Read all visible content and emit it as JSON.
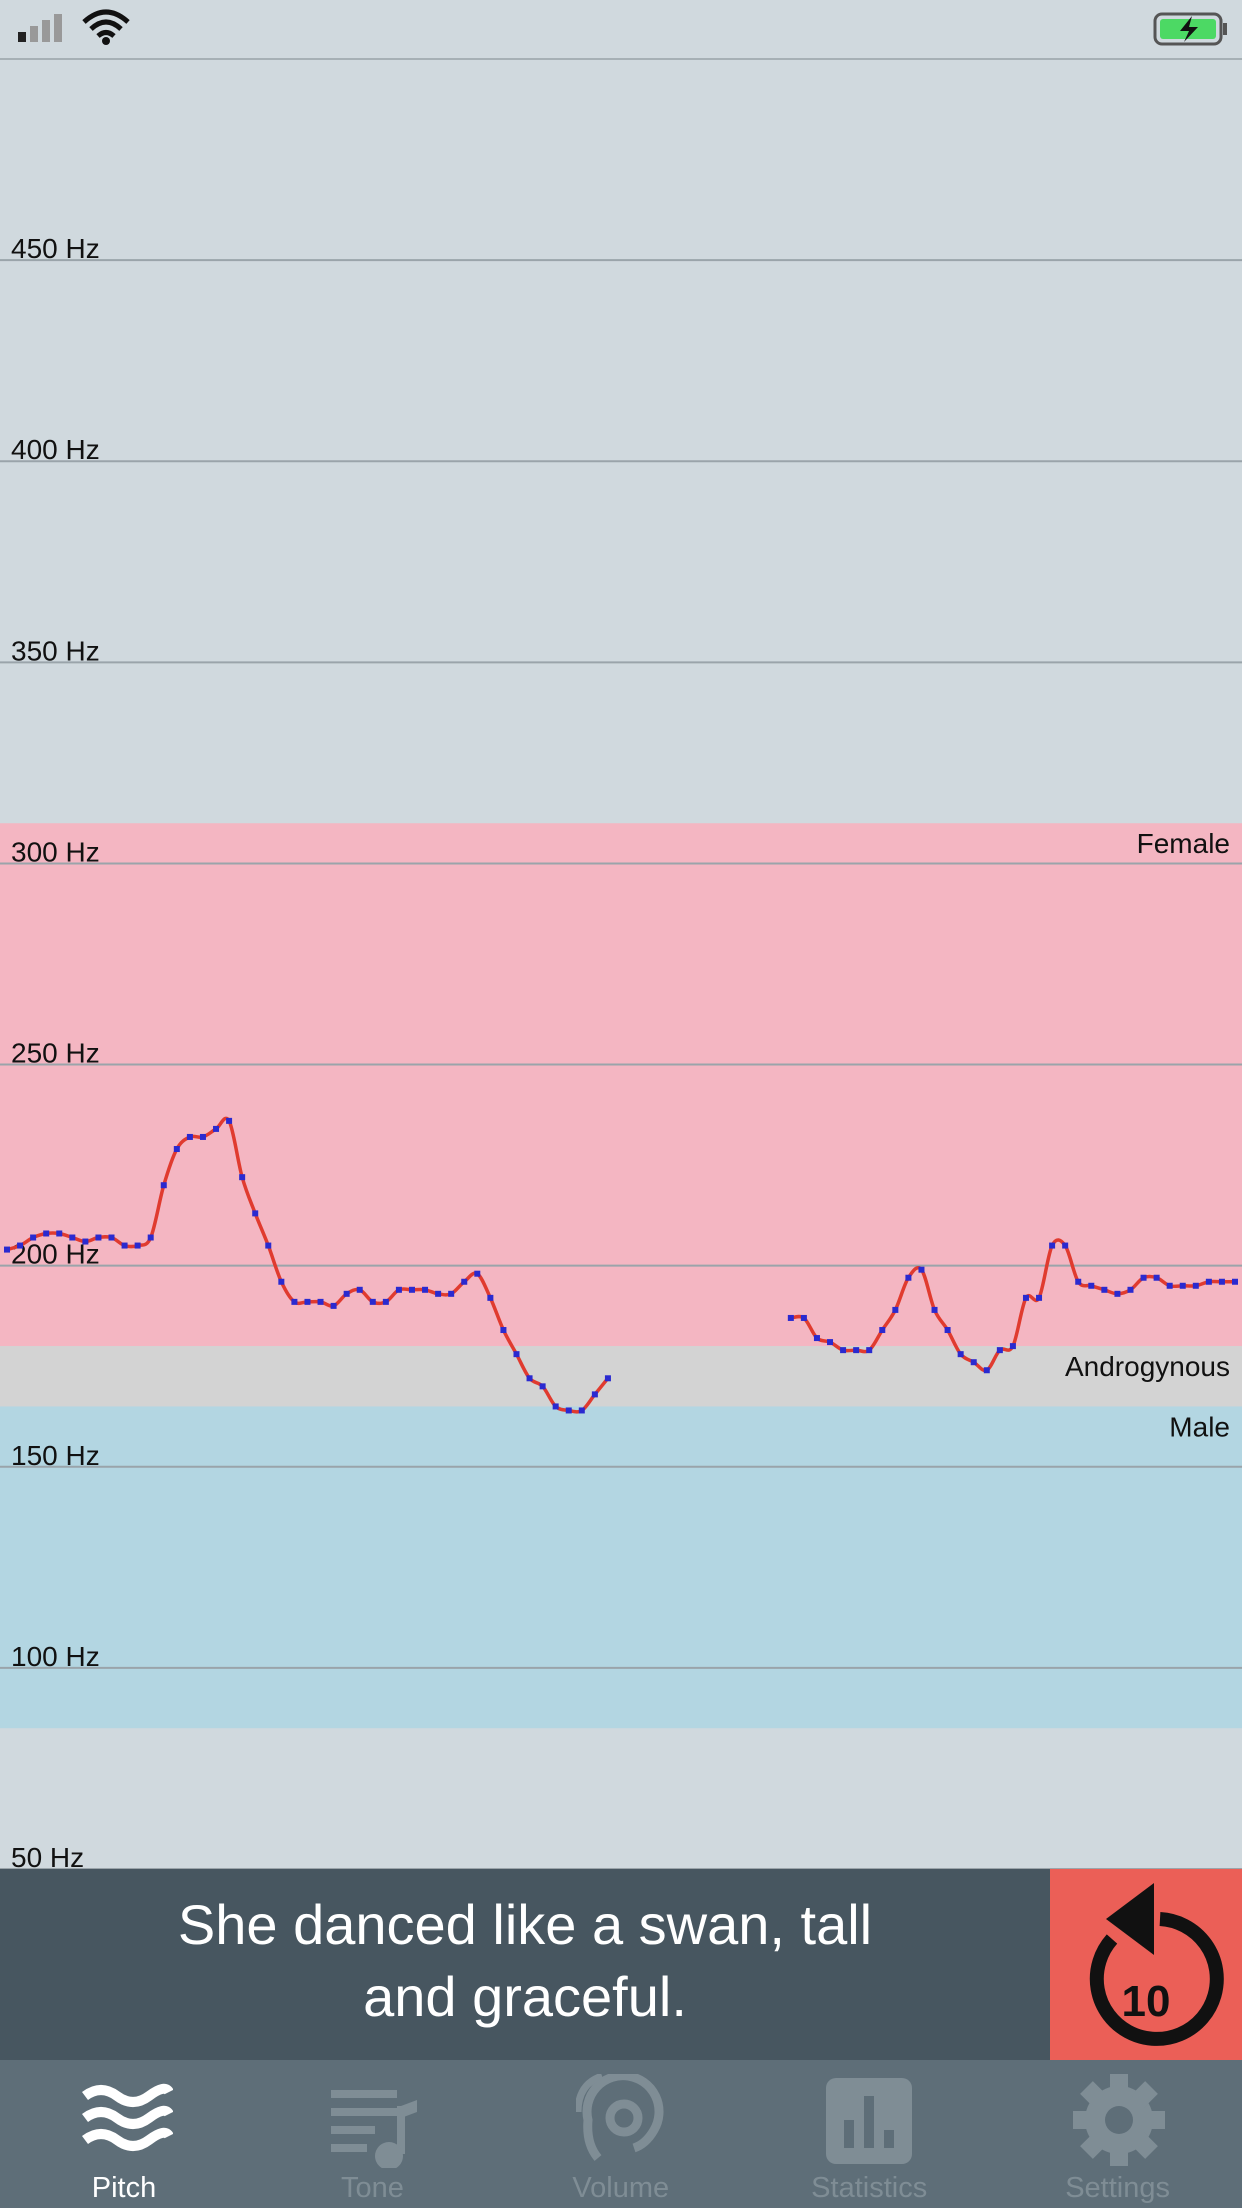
{
  "chart_data": {
    "type": "line",
    "ylim": [
      50,
      500
    ],
    "yticks": [
      {
        "value": 50,
        "label": "50 Hz"
      },
      {
        "value": 100,
        "label": "100 Hz"
      },
      {
        "value": 150,
        "label": "150 Hz"
      },
      {
        "value": 200,
        "label": "200 Hz"
      },
      {
        "value": 250,
        "label": "250 Hz"
      },
      {
        "value": 300,
        "label": "300 Hz"
      },
      {
        "value": 350,
        "label": "350 Hz"
      },
      {
        "value": 400,
        "label": "400 Hz"
      },
      {
        "value": 450,
        "label": "450 Hz"
      }
    ],
    "grid": true,
    "bands": [
      {
        "label": "Female",
        "from": 180,
        "to": 310,
        "color": "#f4b6c2"
      },
      {
        "label": "Androgynous",
        "from": 165,
        "to": 180,
        "color": "#d3d3d3"
      },
      {
        "label": "Male",
        "from": 85,
        "to": 165,
        "color": "#b3d6e2"
      }
    ],
    "series": [
      {
        "color": "#e03b2f",
        "marker_color": "#2a2ad0",
        "values": [
          204,
          205,
          207,
          208,
          208,
          207,
          206,
          207,
          207,
          205,
          205,
          207,
          220,
          229,
          232,
          232,
          234,
          236,
          222,
          213,
          205,
          196,
          191,
          191,
          191,
          190,
          193,
          194,
          191,
          191,
          194,
          194,
          194,
          193,
          193,
          196,
          198,
          192,
          184,
          178,
          172,
          170,
          165,
          164,
          164,
          168,
          172,
          null,
          null,
          null,
          null,
          null,
          null,
          null,
          null,
          null,
          null,
          null,
          null,
          null,
          187,
          187,
          182,
          181,
          179,
          179,
          179,
          184,
          189,
          197,
          199,
          189,
          184,
          178,
          176,
          174,
          179,
          180,
          192,
          192,
          205,
          205,
          196,
          195,
          194,
          193,
          194,
          197,
          197,
          195,
          195,
          195,
          196,
          196,
          196
        ]
      }
    ]
  },
  "prompt": {
    "text": "She danced like a swan, tall and graceful."
  },
  "replay_button": {
    "label": "10"
  },
  "tab_bar": {
    "selected": 0,
    "tabs": [
      "Pitch",
      "Tone",
      "Volume",
      "Statistics",
      "Settings"
    ]
  }
}
